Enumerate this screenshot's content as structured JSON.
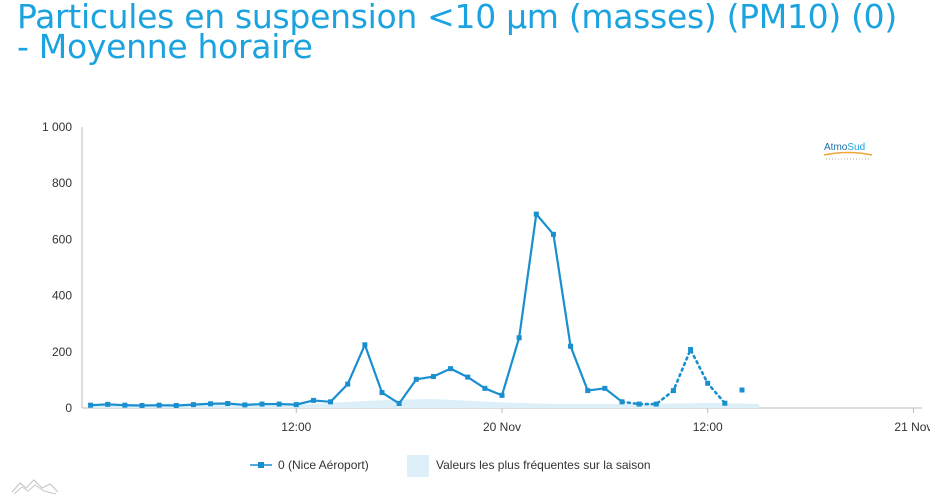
{
  "title": "Particules en suspension <10 µm (masses) (PM10) (0) - Moyenne horaire",
  "brand": {
    "logo_text_1": "Atmo",
    "logo_text_2": "Sud",
    "accent": "#1aa3df",
    "orange": "#f2a33a"
  },
  "chart_data": {
    "type": "line",
    "title": "Particules en suspension <10 µm (masses) (PM10) (0) - Moyenne horaire",
    "xlabel": "",
    "ylabel": "",
    "ylim": [
      0,
      1000
    ],
    "yticks": [
      0,
      200,
      400,
      600,
      800,
      1000
    ],
    "ytick_labels": [
      "0",
      "200",
      "400",
      "600",
      "800",
      "1 000"
    ],
    "x_unit": "hours since 19 Nov 00:00",
    "xlim": [
      -0.5,
      48.5
    ],
    "xticks": [
      {
        "x": 12,
        "label": "12:00"
      },
      {
        "x": 24,
        "label": "20 Nov"
      },
      {
        "x": 36,
        "label": "12:00"
      },
      {
        "x": 48,
        "label": "21 Nov"
      }
    ],
    "grid": false,
    "legend_position": "bottom-center",
    "series": [
      {
        "name": "0 (Nice Aéroport)",
        "color": "#1a8fcf",
        "points": [
          [
            0,
            10
          ],
          [
            1,
            13
          ],
          [
            2,
            10
          ],
          [
            3,
            9
          ],
          [
            4,
            10
          ],
          [
            5,
            9
          ],
          [
            6,
            12
          ],
          [
            7,
            15
          ],
          [
            8,
            16
          ],
          [
            9,
            11
          ],
          [
            10,
            14
          ],
          [
            11,
            14
          ],
          [
            12,
            12
          ],
          [
            13,
            27
          ],
          [
            14,
            22
          ],
          [
            15,
            85
          ],
          [
            16,
            225
          ],
          [
            17,
            55
          ],
          [
            18,
            16
          ],
          [
            19,
            102
          ],
          [
            20,
            112
          ],
          [
            21,
            140
          ],
          [
            22,
            110
          ],
          [
            23,
            70
          ],
          [
            24,
            45
          ],
          [
            25,
            250
          ],
          [
            26,
            690
          ],
          [
            27,
            618
          ],
          [
            28,
            220
          ],
          [
            29,
            62
          ],
          [
            30,
            70
          ],
          [
            31,
            22
          ]
        ],
        "dotted_points": [
          [
            31,
            22
          ],
          [
            32,
            14
          ],
          [
            33,
            14
          ],
          [
            34,
            62
          ],
          [
            35,
            208
          ],
          [
            36,
            88
          ],
          [
            37,
            17
          ]
        ],
        "isolated_points": [
          [
            38,
            64
          ]
        ]
      },
      {
        "name": "Valeurs les plus fréquentes sur la saison",
        "color": "#ddeff8",
        "area_upper": [
          [
            0,
            8
          ],
          [
            4,
            8
          ],
          [
            8,
            10
          ],
          [
            12,
            12
          ],
          [
            14,
            18
          ],
          [
            16,
            25
          ],
          [
            18,
            30
          ],
          [
            20,
            32
          ],
          [
            22,
            26
          ],
          [
            24,
            20
          ],
          [
            26,
            16
          ],
          [
            28,
            14
          ],
          [
            30,
            14
          ],
          [
            32,
            14
          ],
          [
            34,
            16
          ],
          [
            36,
            18
          ],
          [
            38,
            16
          ],
          [
            39,
            14
          ]
        ],
        "area_lower": [
          [
            0,
            0
          ],
          [
            39,
            0
          ]
        ]
      }
    ]
  }
}
